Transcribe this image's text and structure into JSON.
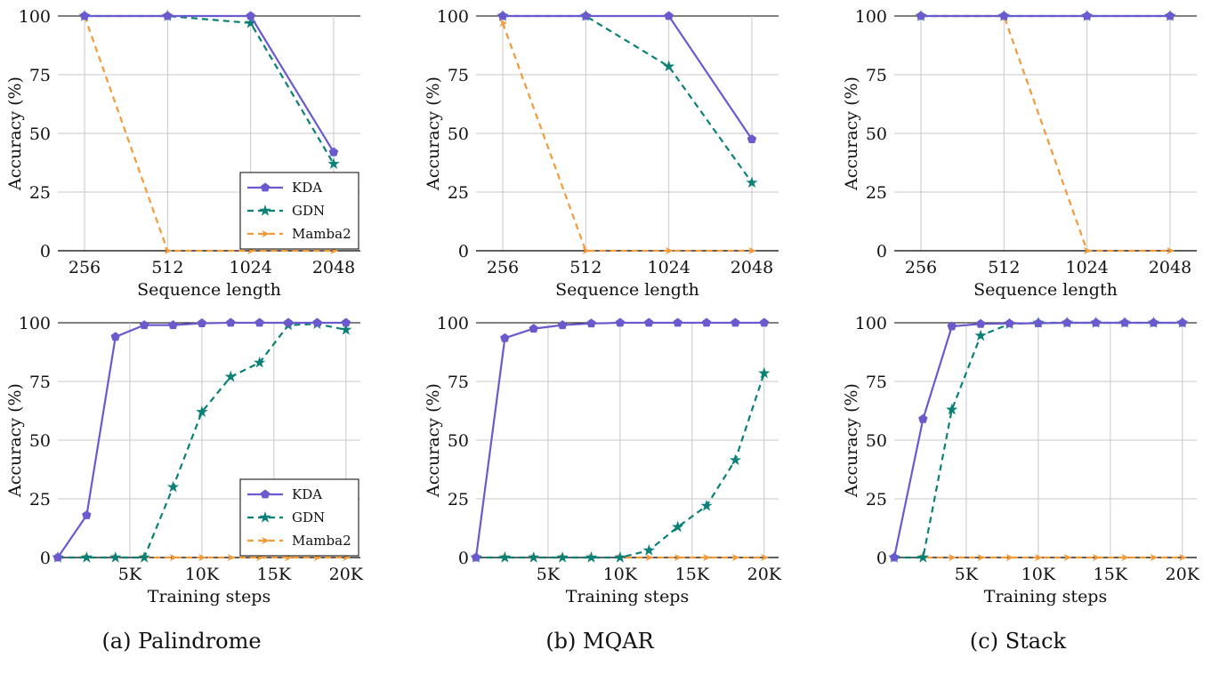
{
  "figure": {
    "captions": [
      "(a) Palindrome",
      "(b) MQAR",
      "(c) Stack"
    ]
  },
  "series_styles": {
    "KDA": {
      "color": "#6a5acd",
      "dash": "solid",
      "marker": "pentagon"
    },
    "GDN": {
      "color": "#0b8076",
      "dash": "dashed",
      "marker": "star"
    },
    "Mamba2": {
      "color": "#f39b3a",
      "dash": "dashed",
      "marker": "arrow"
    }
  },
  "chart_data": [
    {
      "type": "line",
      "task": "Palindrome",
      "xlabel": "Sequence length",
      "ylabel": "Accuracy (%)",
      "categories": [
        "256",
        "512",
        "1024",
        "2048"
      ],
      "ylim": [
        0,
        100
      ],
      "yticks": [
        "0",
        "25",
        "50",
        "75",
        "100"
      ],
      "grid": true,
      "legend": {
        "placement": "bottom-right",
        "entries": [
          "KDA",
          "GDN",
          "Mamba2"
        ]
      },
      "series": [
        {
          "name": "KDA",
          "values": [
            100,
            100,
            100,
            42
          ]
        },
        {
          "name": "GDN",
          "values": [
            100,
            100,
            97,
            37
          ]
        },
        {
          "name": "Mamba2",
          "values": [
            100,
            0,
            0,
            0
          ]
        }
      ]
    },
    {
      "type": "line",
      "task": "MQAR",
      "xlabel": "Sequence length",
      "ylabel": "Accuracy (%)",
      "categories": [
        "256",
        "512",
        "1024",
        "2048"
      ],
      "ylim": [
        0,
        100
      ],
      "yticks": [
        "0",
        "25",
        "50",
        "75",
        "100"
      ],
      "grid": true,
      "series": [
        {
          "name": "KDA",
          "values": [
            100,
            100,
            100,
            47.5
          ]
        },
        {
          "name": "GDN",
          "values": [
            100,
            100,
            78.5,
            29
          ]
        },
        {
          "name": "Mamba2",
          "values": [
            97,
            0,
            0,
            0
          ]
        }
      ]
    },
    {
      "type": "line",
      "task": "Stack",
      "xlabel": "Sequence length",
      "ylabel": "Accuracy (%)",
      "categories": [
        "256",
        "512",
        "1024",
        "2048"
      ],
      "ylim": [
        0,
        100
      ],
      "yticks": [
        "0",
        "25",
        "50",
        "75",
        "100"
      ],
      "grid": true,
      "series": [
        {
          "name": "KDA",
          "values": [
            100,
            100,
            100,
            100
          ]
        },
        {
          "name": "GDN",
          "values": [
            100,
            100,
            100,
            100
          ]
        },
        {
          "name": "Mamba2",
          "values": [
            100,
            100,
            0,
            0
          ]
        }
      ]
    },
    {
      "type": "line",
      "task": "Palindrome",
      "xlabel": "Training steps",
      "ylabel": "Accuracy (%)",
      "x": [
        0,
        2000,
        4000,
        6000,
        8000,
        10000,
        12000,
        14000,
        16000,
        18000,
        20000
      ],
      "xlim": [
        0,
        21000
      ],
      "xticks": [
        {
          "value": 5000,
          "label": "5K"
        },
        {
          "value": 10000,
          "label": "10K"
        },
        {
          "value": 15000,
          "label": "15K"
        },
        {
          "value": 20000,
          "label": "20K"
        }
      ],
      "ylim": [
        0,
        100
      ],
      "yticks": [
        "0",
        "25",
        "50",
        "75",
        "100"
      ],
      "grid": true,
      "legend": {
        "placement": "bottom-right",
        "entries": [
          "KDA",
          "GDN",
          "Mamba2"
        ]
      },
      "series": [
        {
          "name": "KDA",
          "values": [
            0,
            18,
            94,
            99,
            99,
            99.8,
            100,
            100,
            100,
            100,
            100
          ]
        },
        {
          "name": "GDN",
          "values": [
            0,
            0,
            0,
            0,
            30,
            62,
            77,
            83,
            99,
            99.5,
            97
          ]
        },
        {
          "name": "Mamba2",
          "values": [
            0,
            0,
            0,
            0,
            0,
            0,
            0,
            0,
            0,
            0,
            0
          ]
        }
      ]
    },
    {
      "type": "line",
      "task": "MQAR",
      "xlabel": "Training steps",
      "ylabel": "Accuracy (%)",
      "x": [
        0,
        2000,
        4000,
        6000,
        8000,
        10000,
        12000,
        14000,
        16000,
        18000,
        20000
      ],
      "xlim": [
        0,
        21000
      ],
      "xticks": [
        {
          "value": 5000,
          "label": "5K"
        },
        {
          "value": 10000,
          "label": "10K"
        },
        {
          "value": 15000,
          "label": "15K"
        },
        {
          "value": 20000,
          "label": "20K"
        }
      ],
      "ylim": [
        0,
        100
      ],
      "yticks": [
        "0",
        "25",
        "50",
        "75",
        "100"
      ],
      "grid": true,
      "series": [
        {
          "name": "KDA",
          "values": [
            0,
            93.5,
            97.5,
            99,
            99.7,
            100,
            100,
            100,
            100,
            100,
            100
          ]
        },
        {
          "name": "GDN",
          "values": [
            0,
            0,
            0,
            0,
            0,
            0,
            3,
            13,
            22,
            41.5,
            78.5
          ]
        },
        {
          "name": "Mamba2",
          "values": [
            0,
            0,
            0,
            0,
            0,
            0,
            0,
            0,
            0,
            0,
            0
          ]
        }
      ]
    },
    {
      "type": "line",
      "task": "Stack",
      "xlabel": "Training steps",
      "ylabel": "Accuracy (%)",
      "x": [
        0,
        2000,
        4000,
        6000,
        8000,
        10000,
        12000,
        14000,
        16000,
        18000,
        20000
      ],
      "xlim": [
        0,
        21000
      ],
      "xticks": [
        {
          "value": 5000,
          "label": "5K"
        },
        {
          "value": 10000,
          "label": "10K"
        },
        {
          "value": 15000,
          "label": "15K"
        },
        {
          "value": 20000,
          "label": "20K"
        }
      ],
      "ylim": [
        0,
        100
      ],
      "yticks": [
        "0",
        "25",
        "50",
        "75",
        "100"
      ],
      "grid": true,
      "series": [
        {
          "name": "KDA",
          "values": [
            0,
            59,
            98.5,
            99.5,
            99.7,
            99.8,
            100,
            100,
            100,
            100,
            100
          ]
        },
        {
          "name": "GDN",
          "values": [
            0,
            0,
            63,
            94.5,
            99.5,
            100,
            100,
            100,
            100,
            100,
            100
          ]
        },
        {
          "name": "Mamba2",
          "values": [
            0,
            0,
            0,
            0,
            0,
            0,
            0,
            0,
            0,
            0,
            0
          ]
        }
      ]
    }
  ]
}
